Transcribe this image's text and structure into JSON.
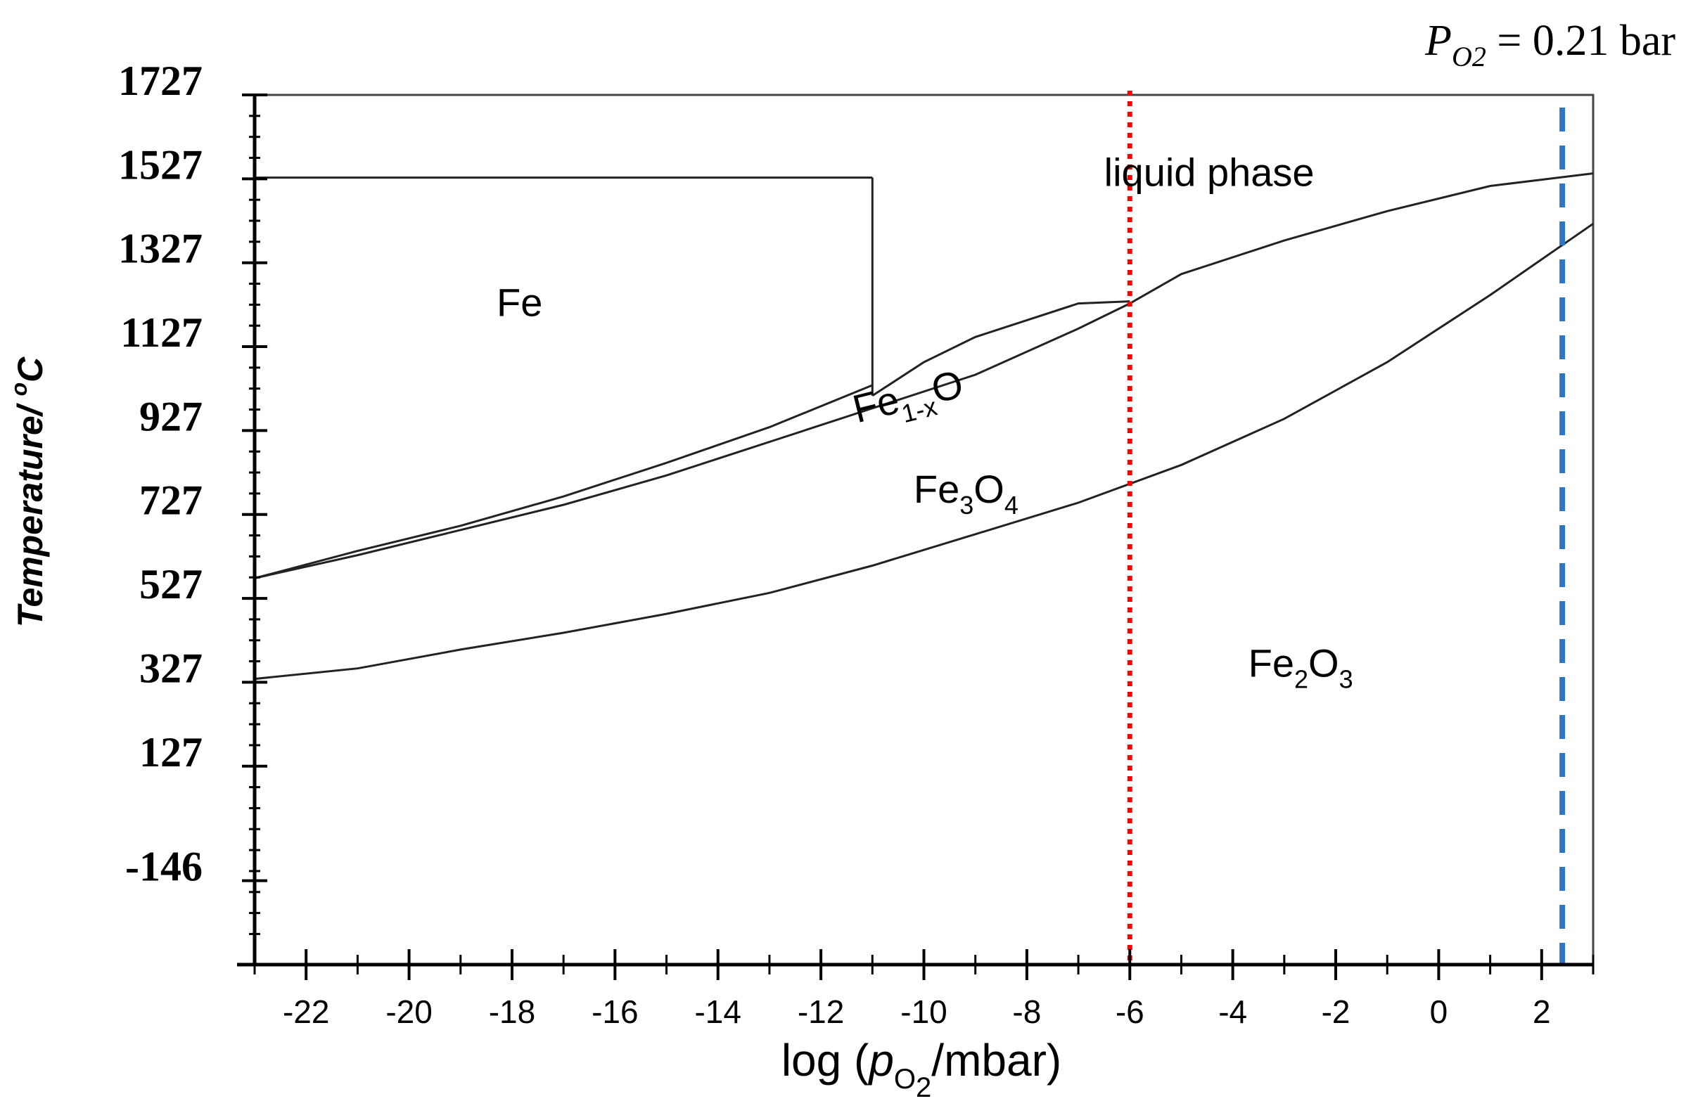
{
  "chart_data": {
    "type": "line",
    "title": "",
    "xlabel": {
      "prefix": "log (",
      "var": "p",
      "sub": "O",
      "sub2": "2",
      "suffix": "/mbar)"
    },
    "ylabel": {
      "text": "Temperature/ ",
      "sup": "o",
      "unit": "C"
    },
    "xlim": [
      -23,
      3
    ],
    "ylim": [
      -346,
      1727
    ],
    "x_ticks": [
      -22,
      -20,
      -18,
      -16,
      -14,
      -12,
      -10,
      -8,
      -6,
      -4,
      -2,
      0,
      2
    ],
    "y_ticks": [
      1727,
      1527,
      1327,
      1127,
      927,
      727,
      527,
      327,
      127,
      -146
    ],
    "x_tick_labels": [
      "-22",
      "-20",
      "-18",
      "-16",
      "-14",
      "-12",
      "-10",
      "-8",
      "-6",
      "-4",
      "-2",
      "0",
      "2"
    ],
    "y_tick_labels": [
      "1727",
      "1527",
      "1327",
      "1127",
      "927",
      "727",
      "527",
      "327",
      "127",
      "-146"
    ],
    "grid": false,
    "legend": "none",
    "phase_regions": [
      {
        "id": "liquid",
        "text": "liquid phase",
        "x": -6.5,
        "y": 1510
      },
      {
        "id": "fe",
        "text": "Fe",
        "x": -18.3,
        "y": 1200
      },
      {
        "id": "fe1xo",
        "parts": [
          "Fe",
          "1-x",
          "O"
        ],
        "x": -11.3,
        "y": 945
      },
      {
        "id": "fe3o4",
        "parts": [
          "Fe",
          "3",
          "O",
          "4"
        ],
        "x": -10.2,
        "y": 755
      },
      {
        "id": "fe2o3",
        "parts": [
          "Fe",
          "2",
          "O",
          "3"
        ],
        "x": -3.7,
        "y": 340
      }
    ],
    "series": [
      {
        "id": "fe-liquid-top",
        "x": [
          -23,
          -11
        ],
        "y": [
          1530,
          1530
        ]
      },
      {
        "id": "fe-liquid-vertical",
        "x": [
          -11,
          -11
        ],
        "y": [
          1530,
          1010
        ]
      },
      {
        "id": "fe-feo-upper",
        "x": [
          -23,
          -21,
          -19,
          -17,
          -15,
          -13,
          -11
        ],
        "y": [
          575,
          640,
          700,
          770,
          850,
          935,
          1035
        ]
      },
      {
        "id": "feo-liquid-upper",
        "x": [
          -11,
          -10,
          -9,
          -7,
          -6
        ],
        "y": [
          1010,
          1090,
          1150,
          1230,
          1235
        ]
      },
      {
        "id": "feo-fe3o4",
        "x": [
          -23,
          -21,
          -19,
          -17,
          -15,
          -13,
          -11,
          -9,
          -7,
          -6
        ],
        "y": [
          575,
          630,
          690,
          750,
          820,
          900,
          980,
          1060,
          1170,
          1230
        ]
      },
      {
        "id": "fe3o4-liquid",
        "x": [
          -6,
          -5,
          -3,
          -1,
          1,
          3
        ],
        "y": [
          1230,
          1300,
          1380,
          1450,
          1510,
          1540
        ]
      },
      {
        "id": "fe3o4-fe2o3",
        "x": [
          -23,
          -21,
          -19,
          -17,
          -15,
          -13,
          -11,
          -9,
          -7,
          -5,
          -3,
          -1,
          1,
          3
        ],
        "y": [
          335,
          360,
          405,
          445,
          490,
          540,
          605,
          680,
          755,
          845,
          955,
          1090,
          1250,
          1420
        ]
      }
    ],
    "reference_lines": [
      {
        "id": "red-dotted",
        "x": -6,
        "color": "#ff0000",
        "style": "dotted"
      },
      {
        "id": "blue-dashed",
        "x": 2.4,
        "color": "#2e75c5",
        "style": "dashed"
      }
    ],
    "annotations": [
      {
        "id": "po2-note",
        "var": "P",
        "sub": "O2",
        "text": " = 0.21 bar"
      }
    ]
  }
}
